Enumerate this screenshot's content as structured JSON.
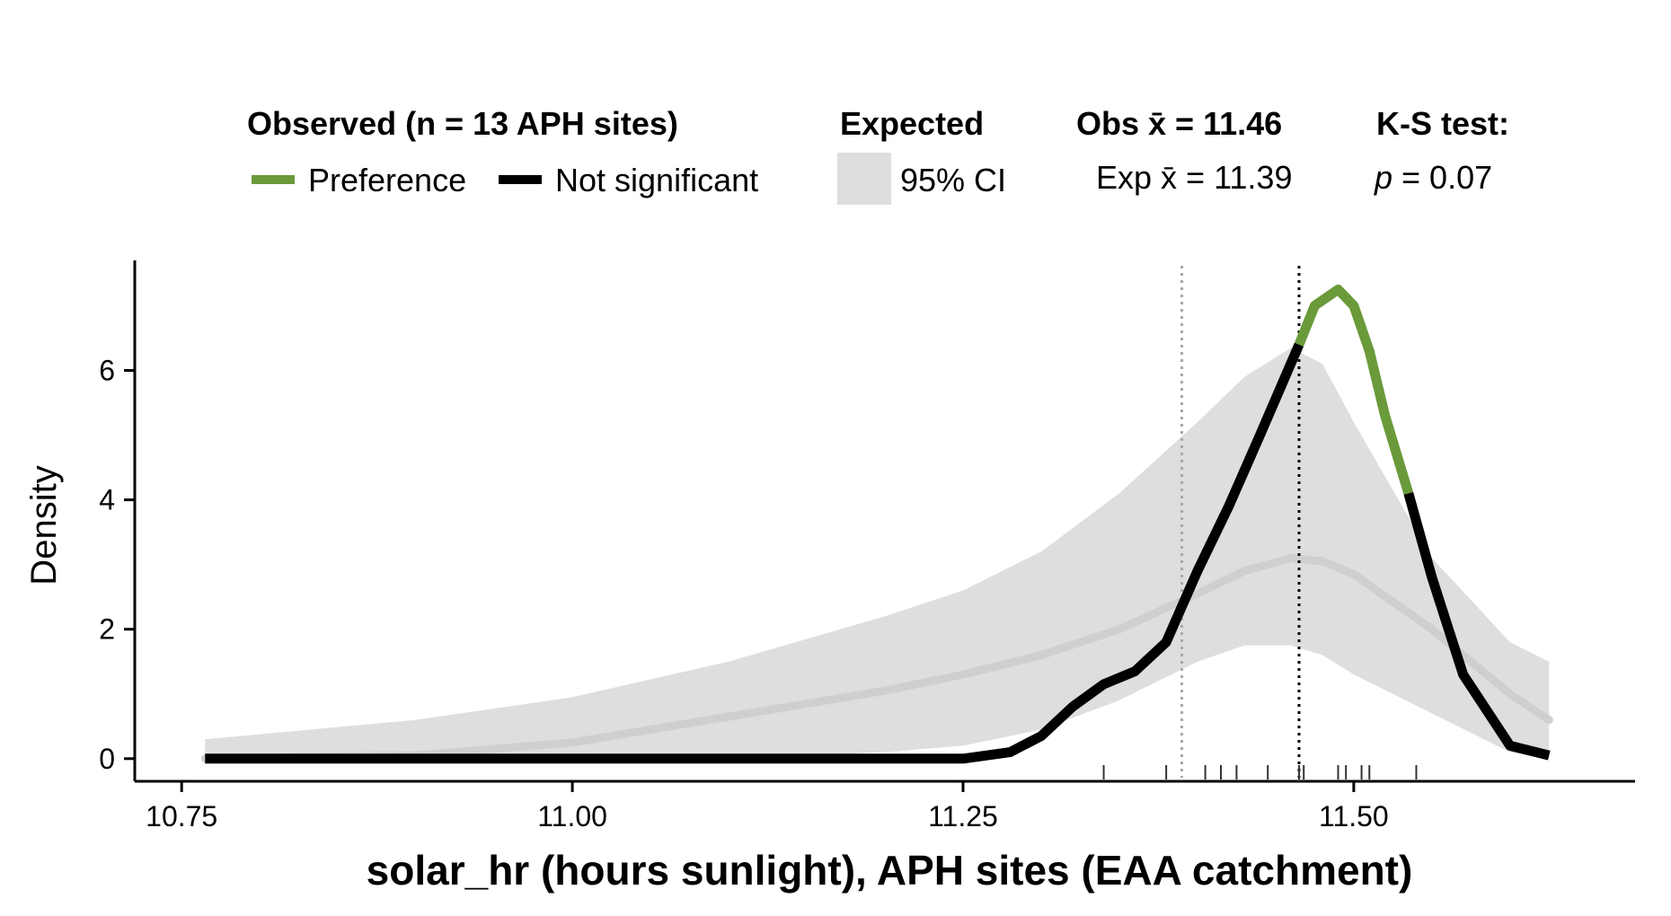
{
  "legend": {
    "observed_title": "Observed (n = 13 APH sites)",
    "preference_label": "Preference",
    "not_significant_label": "Not significant",
    "expected_title": "Expected",
    "ci_label": "95% CI",
    "obs_mean_label": "Obs x̄ = 11.46",
    "exp_mean_label": "Exp x̄ = 11.39",
    "ks_title": "K-S test:",
    "ks_p_symbol": "p",
    "ks_p_value": " = 0.07"
  },
  "colors": {
    "preference": "#6a9a3a",
    "not_significant": "#000000",
    "ci_band": "#dedede",
    "expected_line": "#cfcfcf",
    "expected_mean_line": "#a8a8a8",
    "observed_mean_line": "#000000"
  },
  "chart_data": {
    "type": "line",
    "xlabel": "solar_hr (hours sunlight), APH sites (EAA catchment)",
    "ylabel": "Density",
    "xlim": [
      10.72,
      11.68
    ],
    "ylim": [
      -0.35,
      7.7
    ],
    "x_ticks": [
      10.75,
      11.0,
      11.25,
      11.5
    ],
    "x_tick_labels": [
      "10.75",
      "11.00",
      "11.25",
      "11.50"
    ],
    "y_ticks": [
      0,
      2,
      4,
      6
    ],
    "y_tick_labels": [
      "0",
      "2",
      "4",
      "6"
    ],
    "grid": false,
    "legend_position": "top",
    "observed_mean": 11.465,
    "expected_mean": 11.39,
    "ci_band": {
      "x": [
        10.765,
        10.9,
        11.0,
        11.1,
        11.2,
        11.25,
        11.3,
        11.35,
        11.4,
        11.43,
        11.46,
        11.48,
        11.5,
        11.55,
        11.6,
        11.625
      ],
      "upper": [
        0.3,
        0.6,
        0.95,
        1.5,
        2.2,
        2.6,
        3.2,
        4.1,
        5.2,
        5.9,
        6.35,
        6.1,
        5.2,
        3.1,
        1.8,
        1.5
      ],
      "lower": [
        0.0,
        0.0,
        0.0,
        0.0,
        0.1,
        0.2,
        0.45,
        0.9,
        1.5,
        1.75,
        1.75,
        1.6,
        1.3,
        0.7,
        0.1,
        0.0
      ]
    },
    "expected_density": {
      "x": [
        10.765,
        10.9,
        11.0,
        11.1,
        11.2,
        11.25,
        11.3,
        11.35,
        11.4,
        11.43,
        11.46,
        11.48,
        11.5,
        11.55,
        11.6,
        11.625
      ],
      "y": [
        0.0,
        0.05,
        0.25,
        0.65,
        1.05,
        1.3,
        1.6,
        2.0,
        2.55,
        2.9,
        3.1,
        3.05,
        2.85,
        2.0,
        1.0,
        0.6
      ]
    },
    "observed_density": {
      "x": [
        10.765,
        11.0,
        11.25,
        11.28,
        11.3,
        11.32,
        11.34,
        11.36,
        11.38,
        11.4,
        11.42,
        11.44,
        11.465,
        11.475,
        11.49,
        11.5,
        11.51,
        11.52,
        11.535,
        11.55,
        11.57,
        11.6,
        11.625
      ],
      "y": [
        0.0,
        0.0,
        0.0,
        0.1,
        0.35,
        0.8,
        1.15,
        1.35,
        1.8,
        2.9,
        3.9,
        5.0,
        6.4,
        7.0,
        7.25,
        7.0,
        6.3,
        5.3,
        4.1,
        2.8,
        1.3,
        0.2,
        0.05
      ],
      "preference_x_range": [
        11.465,
        11.535
      ]
    },
    "rug_x": [
      11.34,
      11.38,
      11.405,
      11.415,
      11.425,
      11.445,
      11.465,
      11.468,
      11.49,
      11.495,
      11.505,
      11.51,
      11.54
    ]
  }
}
